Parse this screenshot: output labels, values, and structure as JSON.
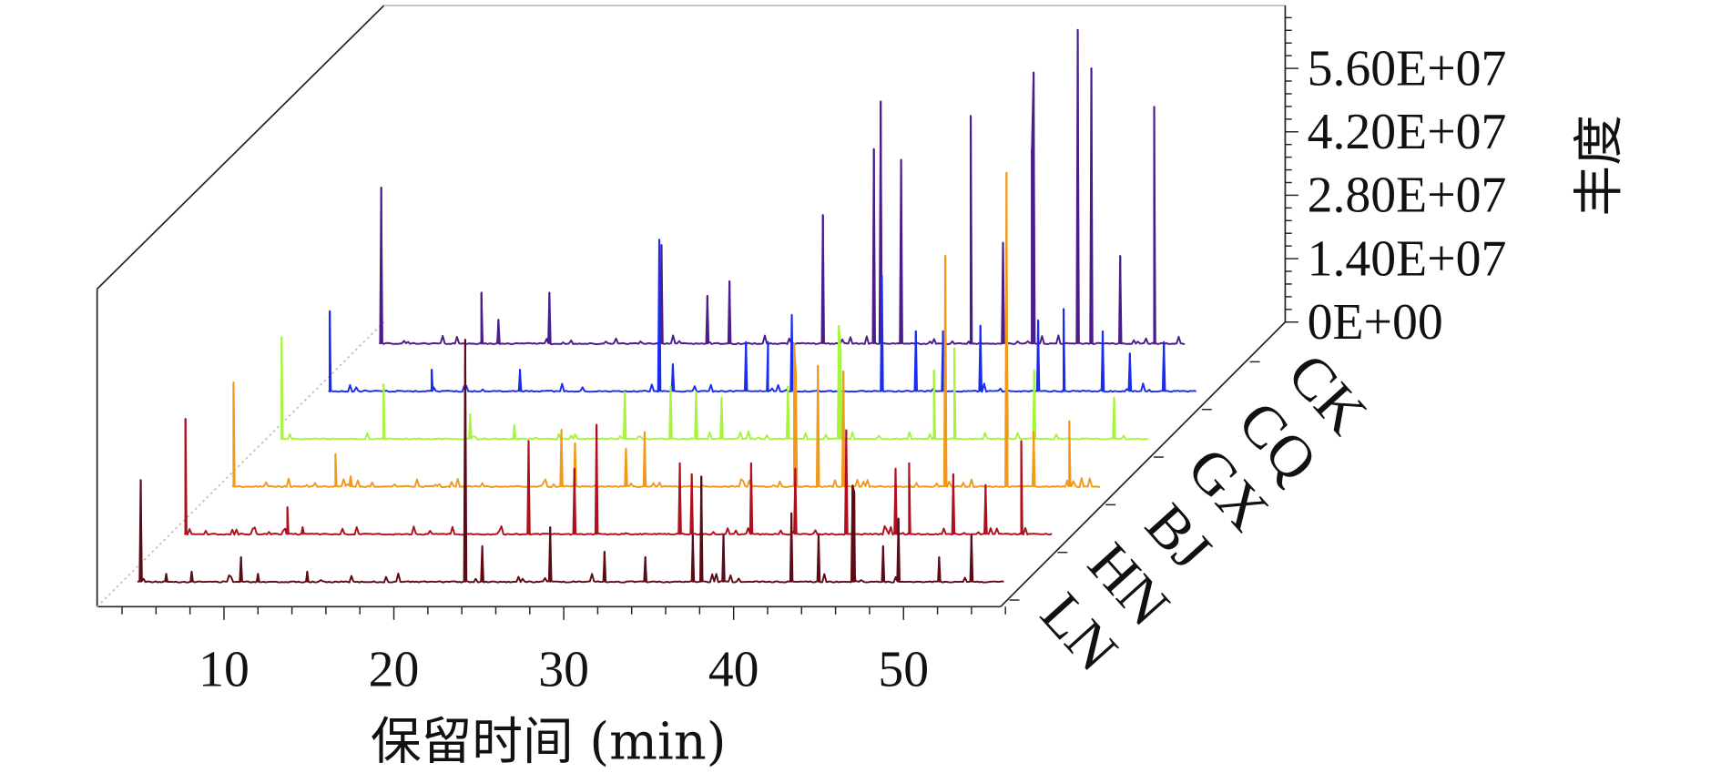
{
  "chart_data": {
    "type": "line",
    "subtype": "3d-waterfall-chromatogram",
    "xlabel": "保留时间 (min)",
    "ylabel": "丰度",
    "x_ticks": [
      "10",
      "20",
      "30",
      "40",
      "50"
    ],
    "x_tick_values": [
      10,
      20,
      30,
      40,
      50
    ],
    "y_ticks": [
      "0E+00",
      "1.40E+07",
      "2.80E+07",
      "4.20E+07",
      "5.60E+07"
    ],
    "y_tick_values": [
      0,
      14000000,
      28000000,
      42000000,
      56000000
    ],
    "xlim": [
      3.5,
      56.5
    ],
    "ylim": [
      0,
      70000000
    ],
    "grid": false,
    "legend": "none",
    "series": [
      {
        "name": "LN",
        "color": "#5c0a16",
        "range": [
          4.9,
          55.9
        ],
        "peaks": [
          [
            5.1,
            22600000
          ],
          [
            6.6,
            1900000
          ],
          [
            8.1,
            2400000
          ],
          [
            11.0,
            5600000
          ],
          [
            12.0,
            1900000
          ],
          [
            14.9,
            2400000
          ],
          [
            24.2,
            53600000
          ],
          [
            25.2,
            8000000
          ],
          [
            29.2,
            12200000
          ],
          [
            32.4,
            6800000
          ],
          [
            34.8,
            5600000
          ],
          [
            37.6,
            10500000
          ],
          [
            38.1,
            23400000
          ],
          [
            39.4,
            10500000
          ],
          [
            43.4,
            15300000
          ],
          [
            45.0,
            10500000
          ],
          [
            47.0,
            21400000
          ],
          [
            47.1,
            20000000
          ],
          [
            48.8,
            8000000
          ],
          [
            49.7,
            14100000
          ],
          [
            52.1,
            5600000
          ],
          [
            54.0,
            10500000
          ]
        ]
      },
      {
        "name": "HN",
        "color": "#b0101e",
        "range": [
          4.9,
          56.0
        ],
        "peaks": [
          [
            4.9,
            25600000
          ],
          [
            10.9,
            6100000
          ],
          [
            11.8,
            1700000
          ],
          [
            25.1,
            20700000
          ],
          [
            27.8,
            14600000
          ],
          [
            29.1,
            24300000
          ],
          [
            34.0,
            15800000
          ],
          [
            34.7,
            13400000
          ],
          [
            38.2,
            15800000
          ],
          [
            40.8,
            14600000
          ],
          [
            43.8,
            23100000
          ],
          [
            46.7,
            14600000
          ],
          [
            47.5,
            15800000
          ],
          [
            50.1,
            13400000
          ],
          [
            52.0,
            11000000
          ],
          [
            54.1,
            20700000
          ]
        ]
      },
      {
        "name": "BJ",
        "color": "#f09a1c",
        "range": [
          4.9,
          56.0
        ],
        "peaks": [
          [
            4.9,
            23100000
          ],
          [
            10.9,
            7300000
          ],
          [
            11.8,
            2400000
          ],
          [
            24.2,
            12700000
          ],
          [
            25.0,
            9700000
          ],
          [
            28.0,
            8500000
          ],
          [
            29.1,
            12200000
          ],
          [
            37.9,
            31700000
          ],
          [
            38.0,
            25000000
          ],
          [
            39.3,
            26800000
          ],
          [
            40.8,
            25600000
          ],
          [
            46.8,
            51100000
          ],
          [
            50.4,
            69400000
          ],
          [
            52.0,
            12200000
          ],
          [
            54.1,
            14600000
          ]
        ]
      },
      {
        "name": "GX",
        "color": "#a6f53a",
        "range": [
          4.9,
          55.9
        ],
        "peaks": [
          [
            4.9,
            22600000
          ],
          [
            10.9,
            12200000
          ],
          [
            16.0,
            5600000
          ],
          [
            18.6,
            3200000
          ],
          [
            25.1,
            10500000
          ],
          [
            27.8,
            11700000
          ],
          [
            29.3,
            10500000
          ],
          [
            30.8,
            9300000
          ],
          [
            34.7,
            11700000
          ],
          [
            37.7,
            25100000
          ],
          [
            37.8,
            20000000
          ],
          [
            43.3,
            15300000
          ],
          [
            44.5,
            20200000
          ],
          [
            47.6,
            20200000
          ],
          [
            49.2,
            15300000
          ],
          [
            53.9,
            9300000
          ]
        ]
      },
      {
        "name": "CQ",
        "color": "#1a2cf0",
        "range": [
          4.9,
          55.9
        ],
        "peaks": [
          [
            4.9,
            17800000
          ],
          [
            10.9,
            4900000
          ],
          [
            16.1,
            4900000
          ],
          [
            24.3,
            33600000
          ],
          [
            25.1,
            6100000
          ],
          [
            29.4,
            11000000
          ],
          [
            30.7,
            11000000
          ],
          [
            32.1,
            17000000
          ],
          [
            37.4,
            25600000
          ],
          [
            39.4,
            13400000
          ],
          [
            41.0,
            13400000
          ],
          [
            43.2,
            14600000
          ],
          [
            46.6,
            15800000
          ],
          [
            48.1,
            18300000
          ],
          [
            50.4,
            13400000
          ],
          [
            52.0,
            8500000
          ],
          [
            54.0,
            11000000
          ]
        ]
      },
      {
        "name": "CK",
        "color": "#4a1c8c",
        "range": [
          5.0,
          52.4
        ],
        "peaks": [
          [
            5.1,
            34600000
          ],
          [
            11.0,
            11400000
          ],
          [
            12.0,
            5400000
          ],
          [
            15.0,
            11400000
          ],
          [
            21.6,
            21900000
          ],
          [
            24.3,
            10700000
          ],
          [
            25.6,
            13900000
          ],
          [
            31.1,
            28500000
          ],
          [
            34.1,
            43100000
          ],
          [
            34.5,
            53600000
          ],
          [
            35.7,
            40700000
          ],
          [
            39.8,
            50400000
          ],
          [
            41.7,
            22400000
          ],
          [
            43.4,
            43100000
          ],
          [
            43.5,
            60000000
          ],
          [
            46.1,
            69400000
          ],
          [
            46.9,
            60900000
          ],
          [
            48.6,
            19500000
          ],
          [
            50.6,
            52400000
          ]
        ]
      }
    ]
  }
}
